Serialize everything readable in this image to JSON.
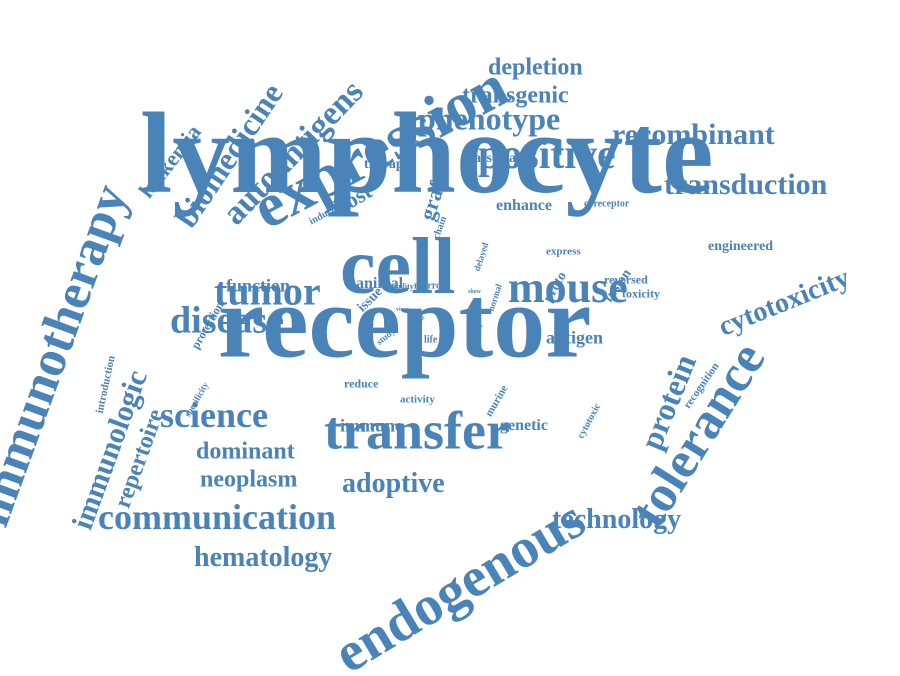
{
  "word_color": "#4a83b8",
  "words": [
    "lymphocyte",
    "receptor",
    "cell",
    "expression",
    "immunotherapy",
    "endogenous",
    "tolerance",
    "transfer",
    "mouse",
    "positive",
    "tumor",
    "disease",
    "communication",
    "science",
    "protein",
    "autoantigens",
    "biomedicine",
    "phenotype",
    "transduction",
    "recombinant",
    "cytotoxicity",
    "immunologic",
    "hematology",
    "adoptive",
    "technology",
    "neoplasm",
    "dominant",
    "repertoire",
    "leukemia",
    "depletion",
    "transgenic",
    "host",
    "graft",
    "function",
    "antigen",
    "immune",
    "genetic",
    "enhance",
    "therapy",
    "associated",
    "animal",
    "issue",
    "proto",
    "fusion",
    "reversed",
    "toxicity",
    "express",
    "engineered",
    "recognition",
    "protection",
    "introduction",
    "specificity",
    "reduce",
    "activity",
    "murine",
    "cytotoxic",
    "coreceptor",
    "induction",
    "chain",
    "delayed",
    "normal",
    "marrow",
    "ability",
    "study",
    "life",
    "self",
    "virus",
    "model",
    "show",
    "look",
    "clone"
  ]
}
